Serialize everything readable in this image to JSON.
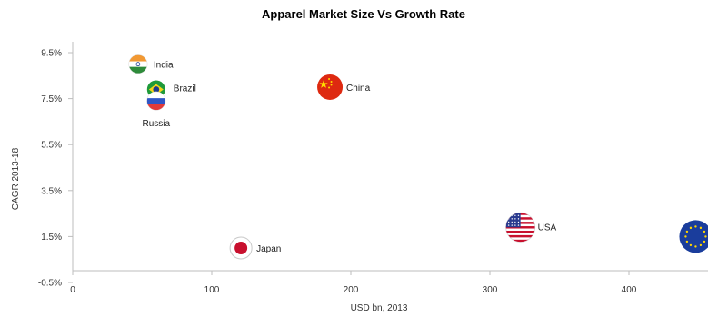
{
  "chart_data": {
    "type": "scatter",
    "title": "Apparel Market Size Vs Growth Rate",
    "xlabel": "USD bn, 2013",
    "ylabel": "CAGR 2013-18",
    "xlim": [
      0,
      460
    ],
    "ylim": [
      -0.5,
      9.5
    ],
    "x_ticks": [
      0,
      100,
      200,
      300,
      400
    ],
    "y_ticks": [
      -0.5,
      1.5,
      3.5,
      5.5,
      7.5,
      9.5
    ],
    "y_tick_labels": [
      "-0.5%",
      "1.5%",
      "3.5%",
      "5.5%",
      "7.5%",
      "9.5%"
    ],
    "grid": false,
    "points": [
      {
        "label": "India",
        "flag": "india-flag",
        "x": 47,
        "y": 9.0
      },
      {
        "label": "Brazil",
        "flag": "brazil-flag",
        "x": 60,
        "y": 7.9
      },
      {
        "label": "Russia",
        "flag": "russia-flag",
        "x": 60,
        "y": 7.4
      },
      {
        "label": "China",
        "flag": "china-flag",
        "x": 185,
        "y": 8.0
      },
      {
        "label": "USA",
        "flag": "usa-flag",
        "x": 322,
        "y": 1.9
      },
      {
        "label": "Japan",
        "flag": "japan-flag",
        "x": 121,
        "y": 1.0
      },
      {
        "label": "",
        "flag": "eu-flag",
        "x": 448,
        "y": 1.5
      }
    ]
  }
}
